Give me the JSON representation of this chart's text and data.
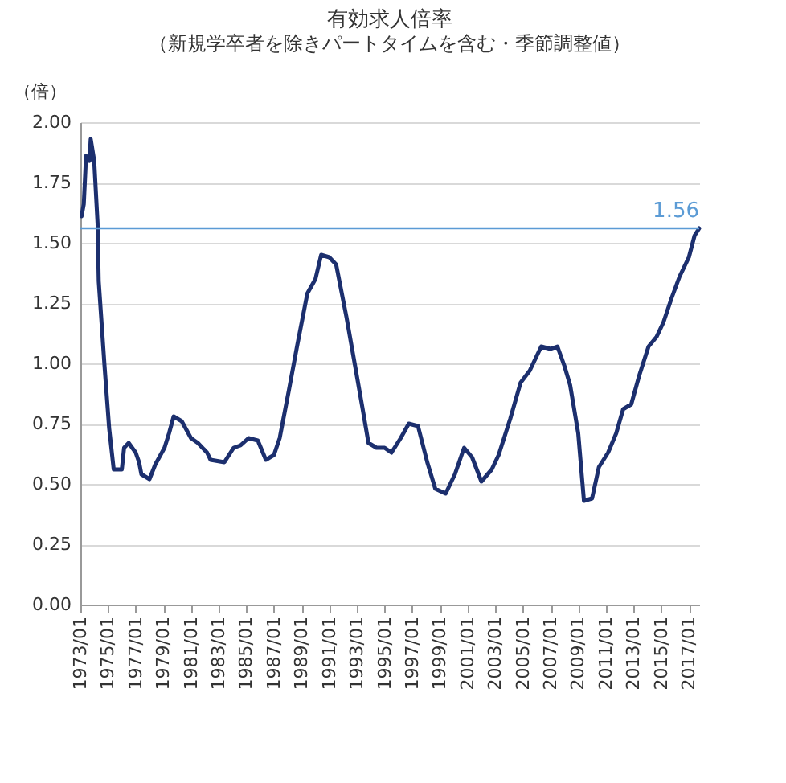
{
  "chart_data": {
    "type": "line",
    "title": "有効求人倍率",
    "subtitle": "（新規学卒者を除きパートタイムを含む・季節調整値）",
    "ylabel": "（倍）",
    "x": [
      "1973-02",
      "1973-04",
      "1973-06",
      "1973-09",
      "1973-10",
      "1974-01",
      "1974-04",
      "1974-05",
      "1974-10",
      "1975-02",
      "1975-06",
      "1976-01",
      "1976-03",
      "1976-07",
      "1977-01",
      "1977-04",
      "1977-06",
      "1978-01",
      "1978-06",
      "1979-02",
      "1979-06",
      "1979-10",
      "1980-05",
      "1981-01",
      "1981-07",
      "1982-03",
      "1982-06",
      "1983-06",
      "1984-02",
      "1984-08",
      "1985-03",
      "1985-11",
      "1986-06",
      "1987-01",
      "1987-06",
      "1988-02",
      "1988-09",
      "1989-06",
      "1990-01",
      "1990-06",
      "1991-01",
      "1991-07",
      "1992-04",
      "1992-11",
      "1993-06",
      "1993-11",
      "1994-06",
      "1995-01",
      "1995-07",
      "1996-03",
      "1996-10",
      "1997-06",
      "1998-02",
      "1998-09",
      "1999-06",
      "2000-02",
      "2000-10",
      "2001-05",
      "2002-01",
      "2002-10",
      "2003-04",
      "2004-02",
      "2004-11",
      "2005-07",
      "2006-05",
      "2007-01",
      "2007-07",
      "2008-01",
      "2008-06",
      "2009-01",
      "2009-06",
      "2010-01",
      "2010-07",
      "2011-03",
      "2011-10",
      "2012-04",
      "2012-11",
      "2013-06",
      "2014-02",
      "2014-09",
      "2015-03",
      "2015-10",
      "2016-05",
      "2017-01",
      "2017-06",
      "2017-10"
    ],
    "series": [
      {
        "color": "#1c2f6e",
        "values": [
          1.61,
          1.66,
          1.86,
          1.84,
          1.93,
          1.84,
          1.58,
          1.34,
          0.99,
          0.73,
          0.56,
          0.56,
          0.65,
          0.67,
          0.63,
          0.59,
          0.54,
          0.52,
          0.58,
          0.65,
          0.71,
          0.78,
          0.76,
          0.69,
          0.67,
          0.63,
          0.6,
          0.59,
          0.65,
          0.66,
          0.69,
          0.68,
          0.6,
          0.62,
          0.69,
          0.89,
          1.07,
          1.29,
          1.35,
          1.45,
          1.44,
          1.41,
          1.19,
          1.0,
          0.81,
          0.67,
          0.65,
          0.65,
          0.63,
          0.69,
          0.75,
          0.74,
          0.59,
          0.48,
          0.46,
          0.54,
          0.65,
          0.61,
          0.51,
          0.56,
          0.62,
          0.77,
          0.92,
          0.97,
          1.07,
          1.06,
          1.07,
          0.99,
          0.91,
          0.71,
          0.43,
          0.44,
          0.57,
          0.63,
          0.71,
          0.81,
          0.83,
          0.95,
          1.07,
          1.11,
          1.17,
          1.27,
          1.36,
          1.44,
          1.53,
          1.56
        ]
      }
    ],
    "xlim": [
      "1973-01",
      "2017-10"
    ],
    "xticks": [
      {
        "value": "1973-01",
        "label": "1973/01"
      },
      {
        "value": "1975-01",
        "label": "1975/01"
      },
      {
        "value": "1977-01",
        "label": "1977/01"
      },
      {
        "value": "1979-01",
        "label": "1979/01"
      },
      {
        "value": "1981-01",
        "label": "1981/01"
      },
      {
        "value": "1983-01",
        "label": "1983/01"
      },
      {
        "value": "1985-01",
        "label": "1985/01"
      },
      {
        "value": "1987-01",
        "label": "1987/01"
      },
      {
        "value": "1989-01",
        "label": "1989/01"
      },
      {
        "value": "1991-01",
        "label": "1991/01"
      },
      {
        "value": "1993-01",
        "label": "1993/01"
      },
      {
        "value": "1995-01",
        "label": "1995/01"
      },
      {
        "value": "1997-01",
        "label": "1997/01"
      },
      {
        "value": "1999-01",
        "label": "1999/01"
      },
      {
        "value": "2001-01",
        "label": "2001/01"
      },
      {
        "value": "2003-01",
        "label": "2003/01"
      },
      {
        "value": "2005-01",
        "label": "2005/01"
      },
      {
        "value": "2007-01",
        "label": "2007/01"
      },
      {
        "value": "2009-01",
        "label": "2009/01"
      },
      {
        "value": "2011-01",
        "label": "2011/01"
      },
      {
        "value": "2013-01",
        "label": "2013/01"
      },
      {
        "value": "2015-01",
        "label": "2015/01"
      },
      {
        "value": "2017-01",
        "label": "2017/01"
      }
    ],
    "ylim": [
      0,
      2
    ],
    "yticks": [
      {
        "value": 0,
        "label": "0.00"
      },
      {
        "value": 0.25,
        "label": "0.25"
      },
      {
        "value": 0.5,
        "label": "0.50"
      },
      {
        "value": 0.75,
        "label": "0.75"
      },
      {
        "value": 1,
        "label": "1.00"
      },
      {
        "value": 1.25,
        "label": "1.25"
      },
      {
        "value": 1.5,
        "label": "1.50"
      },
      {
        "value": 1.75,
        "label": "1.75"
      },
      {
        "value": 2,
        "label": "2.00"
      }
    ],
    "grid": "y",
    "marker": "none",
    "line_style": "solid",
    "ref_lines": [
      {
        "axis": "y",
        "value": 1.56,
        "label": "1.56",
        "color": "#5b9bd5"
      }
    ]
  }
}
